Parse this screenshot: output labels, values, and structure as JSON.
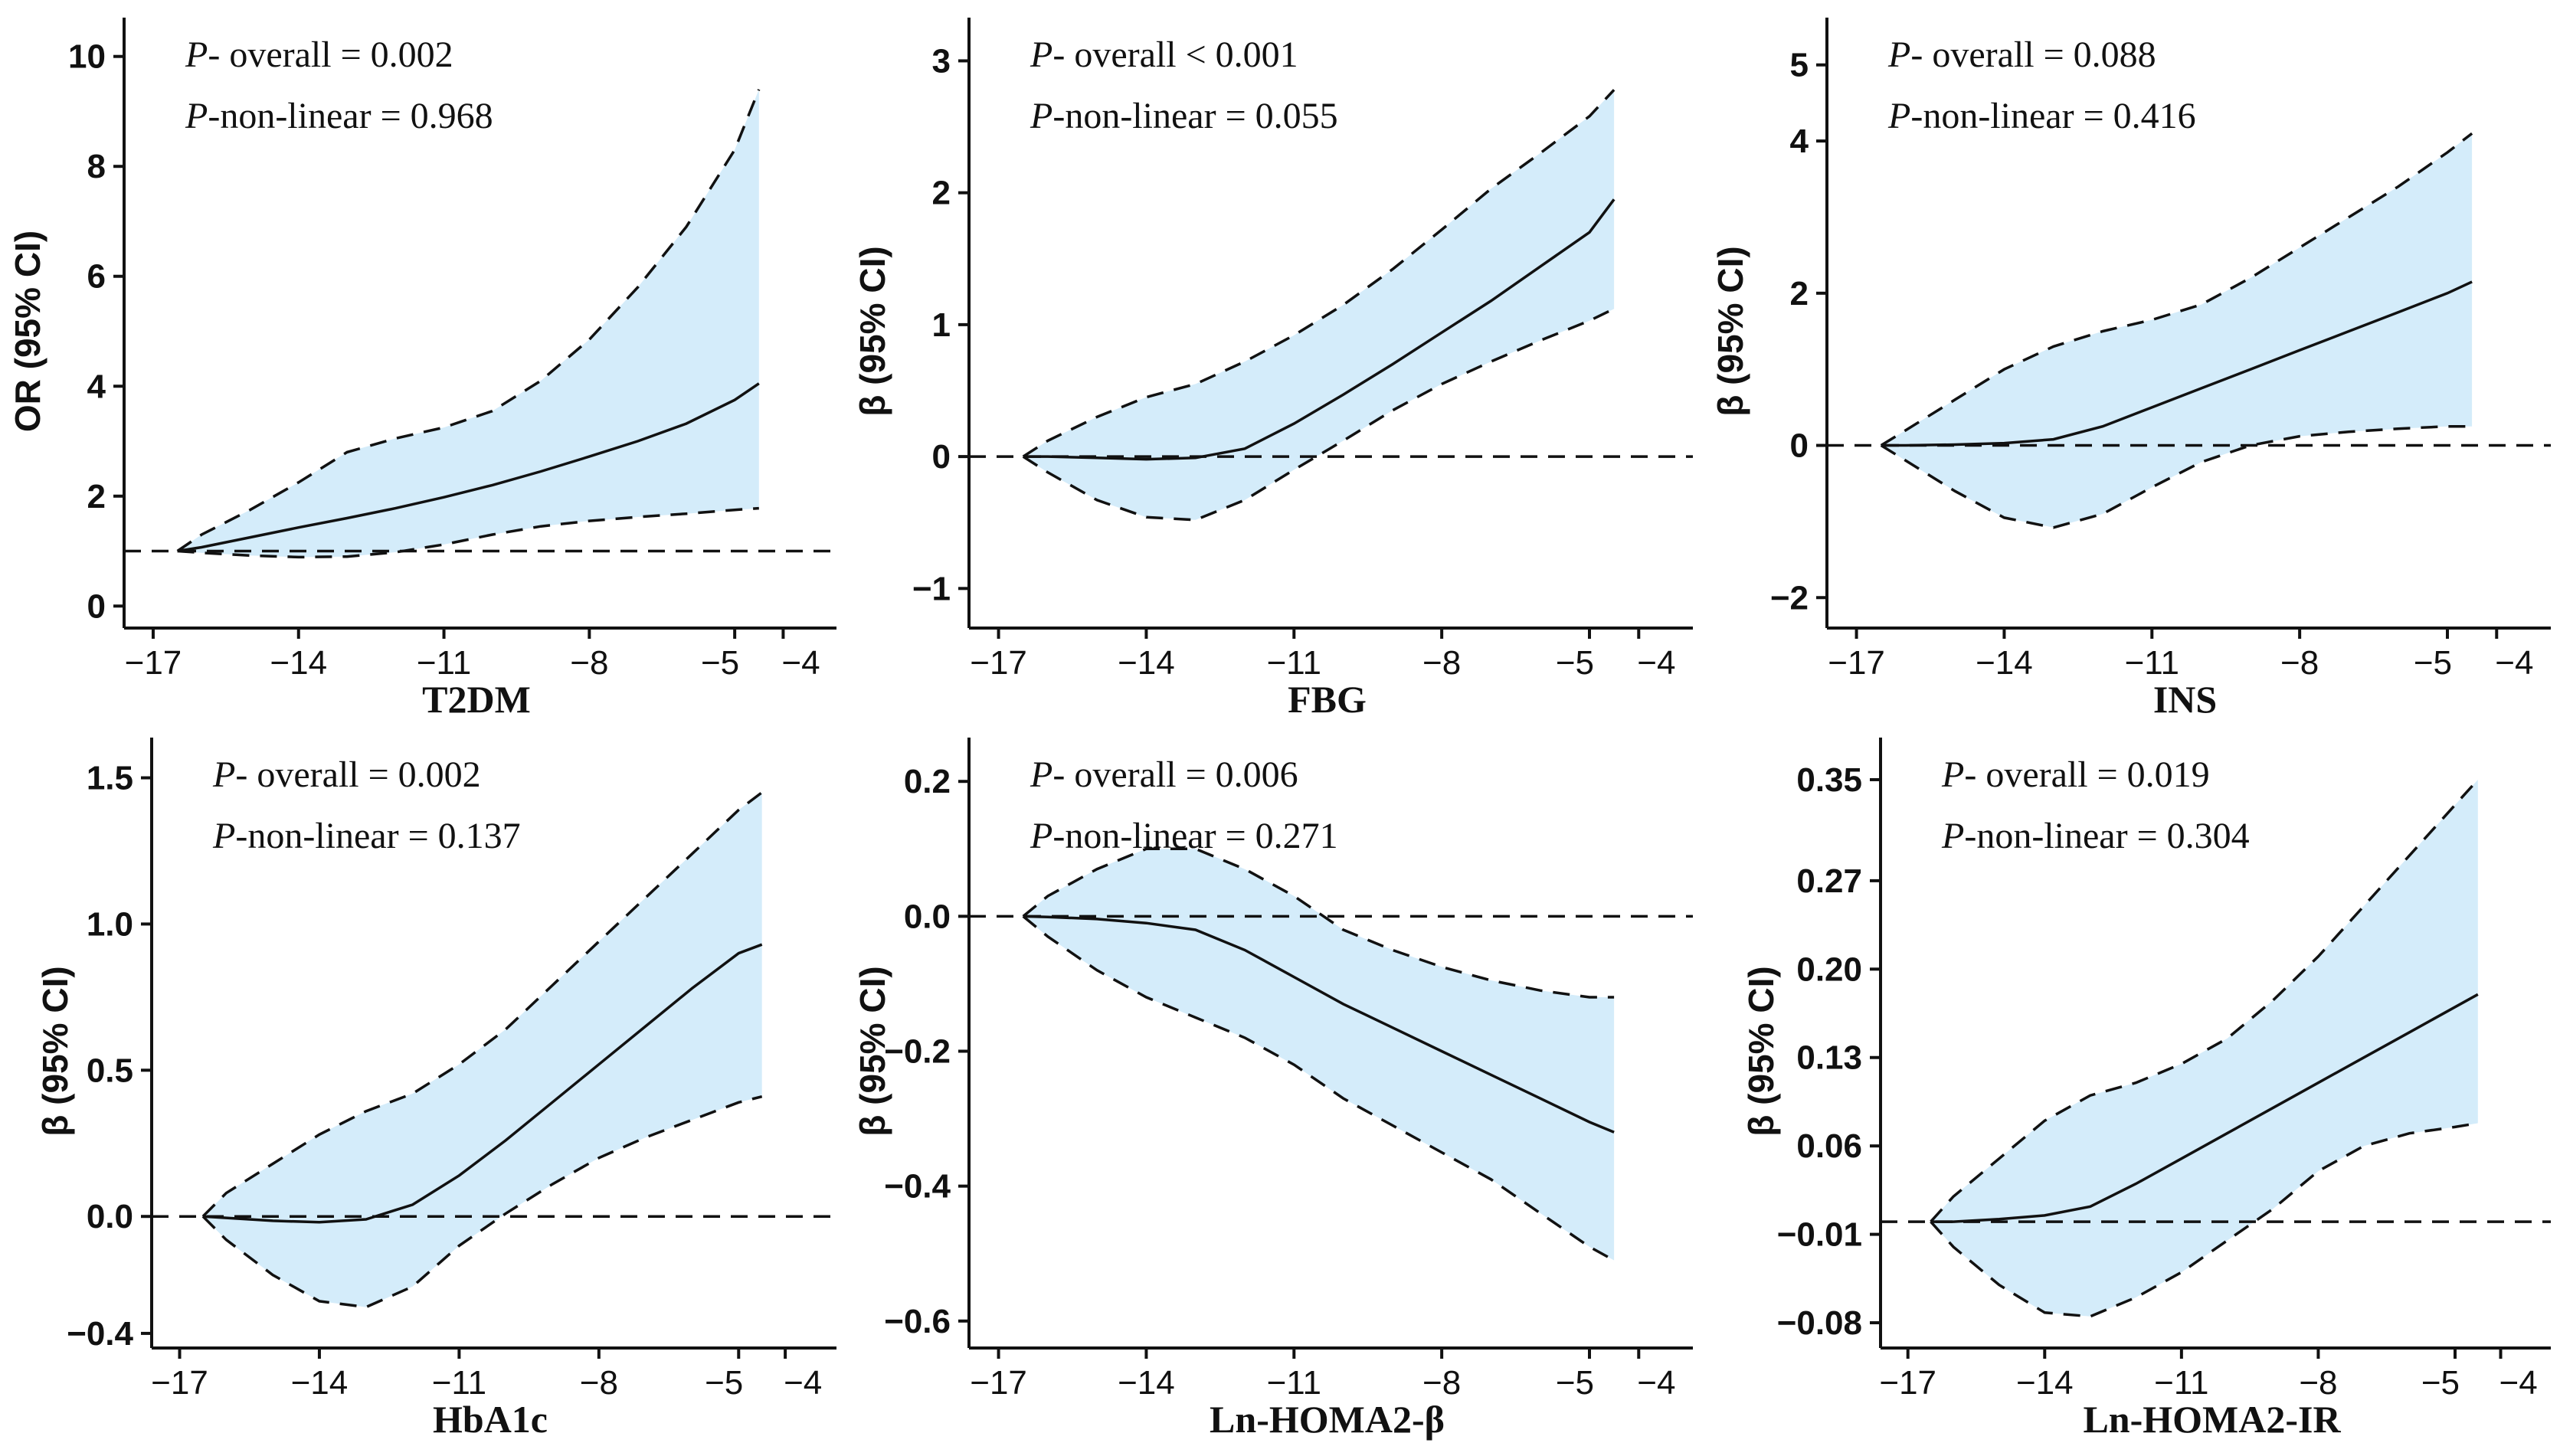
{
  "chart_data": [
    {
      "type": "line",
      "xlabel": "T2DM",
      "ylabel": "OR (95% CI)",
      "xlim": [
        -17.6,
        -2.9
      ],
      "ylim": [
        -0.4,
        10.4
      ],
      "xticks": [
        -17,
        -14,
        -11,
        -8,
        -5,
        -4
      ],
      "xtick_labels": [
        "−17",
        "−14",
        "−11",
        "−8",
        "−5",
        "−4"
      ],
      "yticks": [
        0,
        2,
        4,
        6,
        8,
        10
      ],
      "ytick_labels": [
        "0",
        "2",
        "4",
        "6",
        "8",
        "10"
      ],
      "reference": 1,
      "annotation": {
        "p_overall_prefix": "P",
        "p_overall_text": "- overall = 0.002",
        "p_nonlinear_prefix": "P",
        "p_nonlinear_text": "-non-linear = 0.968"
      },
      "x": [
        -16.5,
        -16,
        -15,
        -14,
        -13,
        -12,
        -11,
        -10,
        -9,
        -8,
        -7,
        -6,
        -5,
        -4.5
      ],
      "estimate": [
        1.0,
        1.07,
        1.25,
        1.43,
        1.6,
        1.78,
        1.98,
        2.2,
        2.45,
        2.72,
        3.0,
        3.32,
        3.75,
        4.05
      ],
      "lower": [
        1.0,
        0.97,
        0.92,
        0.89,
        0.9,
        0.98,
        1.12,
        1.3,
        1.45,
        1.55,
        1.62,
        1.68,
        1.75,
        1.78
      ],
      "upper": [
        1.0,
        1.3,
        1.75,
        2.25,
        2.8,
        3.05,
        3.25,
        3.55,
        4.1,
        4.85,
        5.8,
        6.9,
        8.3,
        9.4
      ]
    },
    {
      "type": "line",
      "xlabel": "FBG",
      "ylabel": "β (95% CI)",
      "xlim": [
        -17.6,
        -2.9
      ],
      "ylim": [
        -1.3,
        3.2
      ],
      "xticks": [
        -17,
        -14,
        -11,
        -8,
        -5,
        -4
      ],
      "xtick_labels": [
        "−17",
        "−14",
        "−11",
        "−8",
        "−5",
        "−4"
      ],
      "yticks": [
        -1,
        0,
        1,
        2,
        3
      ],
      "ytick_labels": [
        "−1",
        "0",
        "1",
        "2",
        "3"
      ],
      "reference": 0,
      "annotation": {
        "p_overall_prefix": "P",
        "p_overall_text": "- overall < 0.001",
        "p_nonlinear_prefix": "P",
        "p_nonlinear_text": "-non-linear = 0.055"
      },
      "x": [
        -16.5,
        -16,
        -15,
        -14,
        -13,
        -12,
        -11,
        -10,
        -9,
        -8,
        -7,
        -6,
        -5,
        -4.5
      ],
      "estimate": [
        0.0,
        0.0,
        -0.01,
        -0.02,
        -0.01,
        0.06,
        0.25,
        0.47,
        0.7,
        0.94,
        1.18,
        1.44,
        1.7,
        1.95
      ],
      "lower": [
        0.0,
        -0.12,
        -0.33,
        -0.46,
        -0.48,
        -0.33,
        -0.1,
        0.12,
        0.35,
        0.55,
        0.72,
        0.88,
        1.03,
        1.12
      ],
      "upper": [
        0.0,
        0.12,
        0.3,
        0.45,
        0.55,
        0.72,
        0.92,
        1.15,
        1.42,
        1.72,
        2.03,
        2.3,
        2.58,
        2.78
      ]
    },
    {
      "type": "line",
      "xlabel": "INS",
      "ylabel": "β (95% CI)",
      "xlim": [
        -17.6,
        -2.9
      ],
      "ylim": [
        -2.4,
        5.4
      ],
      "xticks": [
        -17,
        -14,
        -11,
        -8,
        -5,
        -4
      ],
      "xtick_labels": [
        "−17",
        "−14",
        "−11",
        "−8",
        "−5",
        "−4"
      ],
      "yticks": [
        -2,
        0,
        2,
        4,
        5
      ],
      "ytick_labels": [
        "−2",
        "0",
        "2",
        "4",
        "5"
      ],
      "reference": 0,
      "annotation": {
        "p_overall_prefix": "P",
        "p_overall_text": "- overall = 0.088",
        "p_nonlinear_prefix": "P",
        "p_nonlinear_text": "-non-linear = 0.416"
      },
      "x": [
        -16.5,
        -16,
        -15,
        -14,
        -13,
        -12,
        -11,
        -10,
        -9,
        -8,
        -7,
        -6,
        -5,
        -4.5
      ],
      "estimate": [
        0.0,
        0.0,
        0.01,
        0.03,
        0.08,
        0.25,
        0.5,
        0.75,
        1.0,
        1.25,
        1.5,
        1.75,
        2.0,
        2.15
      ],
      "lower": [
        0.0,
        -0.2,
        -0.6,
        -0.95,
        -1.08,
        -0.9,
        -0.55,
        -0.22,
        0.0,
        0.12,
        0.18,
        0.22,
        0.25,
        0.25
      ],
      "upper": [
        0.0,
        0.2,
        0.6,
        1.0,
        1.3,
        1.5,
        1.65,
        1.85,
        2.2,
        2.6,
        3.0,
        3.4,
        3.85,
        4.1
      ]
    },
    {
      "type": "line",
      "xlabel": "HbA1c",
      "ylabel": "β (95% CI)",
      "xlim": [
        -17.6,
        -2.9
      ],
      "ylim": [
        -0.45,
        1.58
      ],
      "xticks": [
        -17,
        -14,
        -11,
        -8,
        -5,
        -4
      ],
      "xtick_labels": [
        "−17",
        "−14",
        "−11",
        "−8",
        "−5",
        "−4"
      ],
      "yticks": [
        -0.4,
        0.0,
        0.5,
        1.0,
        1.5
      ],
      "ytick_labels": [
        "−0.4",
        "0.0",
        "0.5",
        "1.0",
        "1.5"
      ],
      "reference": 0,
      "annotation": {
        "p_overall_prefix": "P",
        "p_overall_text": "- overall = 0.002",
        "p_nonlinear_prefix": "P",
        "p_nonlinear_text": "-non-linear = 0.137"
      },
      "x": [
        -16.5,
        -16,
        -15,
        -14,
        -13,
        -12,
        -11,
        -10,
        -9,
        -8,
        -7,
        -6,
        -5,
        -4.5
      ],
      "estimate": [
        0.0,
        -0.005,
        -0.015,
        -0.02,
        -0.01,
        0.04,
        0.14,
        0.26,
        0.39,
        0.52,
        0.65,
        0.78,
        0.9,
        0.93
      ],
      "lower": [
        0.0,
        -0.08,
        -0.2,
        -0.29,
        -0.31,
        -0.24,
        -0.1,
        0.01,
        0.11,
        0.2,
        0.27,
        0.33,
        0.39,
        0.41
      ],
      "upper": [
        0.0,
        0.08,
        0.18,
        0.28,
        0.36,
        0.42,
        0.52,
        0.64,
        0.79,
        0.94,
        1.09,
        1.24,
        1.39,
        1.45
      ]
    },
    {
      "type": "line",
      "xlabel": "Ln-HOMA2-β",
      "ylabel": "β (95% CI)",
      "xlim": [
        -17.6,
        -2.9
      ],
      "ylim": [
        -0.64,
        0.24
      ],
      "xticks": [
        -17,
        -14,
        -11,
        -8,
        -5,
        -4
      ],
      "xtick_labels": [
        "−17",
        "−14",
        "−11",
        "−8",
        "−5",
        "−4"
      ],
      "yticks": [
        -0.6,
        -0.4,
        -0.2,
        0.0,
        0.2
      ],
      "ytick_labels": [
        "−0.6",
        "−0.4",
        "−0.2",
        "0.0",
        "0.2"
      ],
      "reference": 0,
      "annotation": {
        "p_overall_prefix": "P",
        "p_overall_text": "- overall = 0.006",
        "p_nonlinear_prefix": "P",
        "p_nonlinear_text": "-non-linear = 0.271"
      },
      "x": [
        -16.5,
        -16,
        -15,
        -14,
        -13,
        -12,
        -11,
        -10,
        -9,
        -8,
        -7,
        -6,
        -5,
        -4.5
      ],
      "estimate": [
        0.0,
        -0.001,
        -0.004,
        -0.01,
        -0.02,
        -0.05,
        -0.09,
        -0.13,
        -0.165,
        -0.2,
        -0.235,
        -0.27,
        -0.305,
        -0.32
      ],
      "lower": [
        0.0,
        -0.03,
        -0.08,
        -0.12,
        -0.15,
        -0.18,
        -0.22,
        -0.27,
        -0.31,
        -0.35,
        -0.39,
        -0.44,
        -0.49,
        -0.51
      ],
      "upper": [
        0.0,
        0.03,
        0.07,
        0.1,
        0.1,
        0.07,
        0.03,
        -0.02,
        -0.05,
        -0.075,
        -0.095,
        -0.11,
        -0.12,
        -0.12
      ]
    },
    {
      "type": "line",
      "xlabel": "Ln-HOMA2-IR",
      "ylabel": "β (95% CI)",
      "xlim": [
        -17.6,
        -2.9
      ],
      "ylim": [
        -0.1,
        0.37
      ],
      "xticks": [
        -17,
        -14,
        -11,
        -8,
        -5,
        -4
      ],
      "xtick_labels": [
        "−17",
        "−14",
        "−11",
        "−8",
        "−5",
        "−4"
      ],
      "yticks": [
        -0.08,
        -0.01,
        0.06,
        0.13,
        0.2,
        0.27,
        0.35
      ],
      "ytick_labels": [
        "−0.08",
        "−0.01",
        "0.06",
        "0.13",
        "0.20",
        "0.27",
        "0.35"
      ],
      "reference": 0,
      "annotation": {
        "p_overall_prefix": "P",
        "p_overall_text": "- overall = 0.019",
        "p_nonlinear_prefix": "P",
        "p_nonlinear_text": "-non-linear = 0.304"
      },
      "x": [
        -16.5,
        -16,
        -15,
        -14,
        -13,
        -12,
        -11,
        -10,
        -9,
        -8,
        -7,
        -6,
        -5,
        -4.5
      ],
      "estimate": [
        0.0,
        0.0,
        0.002,
        0.005,
        0.012,
        0.03,
        0.05,
        0.07,
        0.09,
        0.11,
        0.13,
        0.15,
        0.17,
        0.18
      ],
      "lower": [
        0.0,
        -0.02,
        -0.05,
        -0.072,
        -0.075,
        -0.06,
        -0.04,
        -0.015,
        0.01,
        0.04,
        0.06,
        0.07,
        0.075,
        0.078
      ],
      "upper": [
        0.0,
        0.02,
        0.05,
        0.08,
        0.1,
        0.11,
        0.125,
        0.145,
        0.175,
        0.21,
        0.25,
        0.29,
        0.33,
        0.35
      ]
    }
  ]
}
